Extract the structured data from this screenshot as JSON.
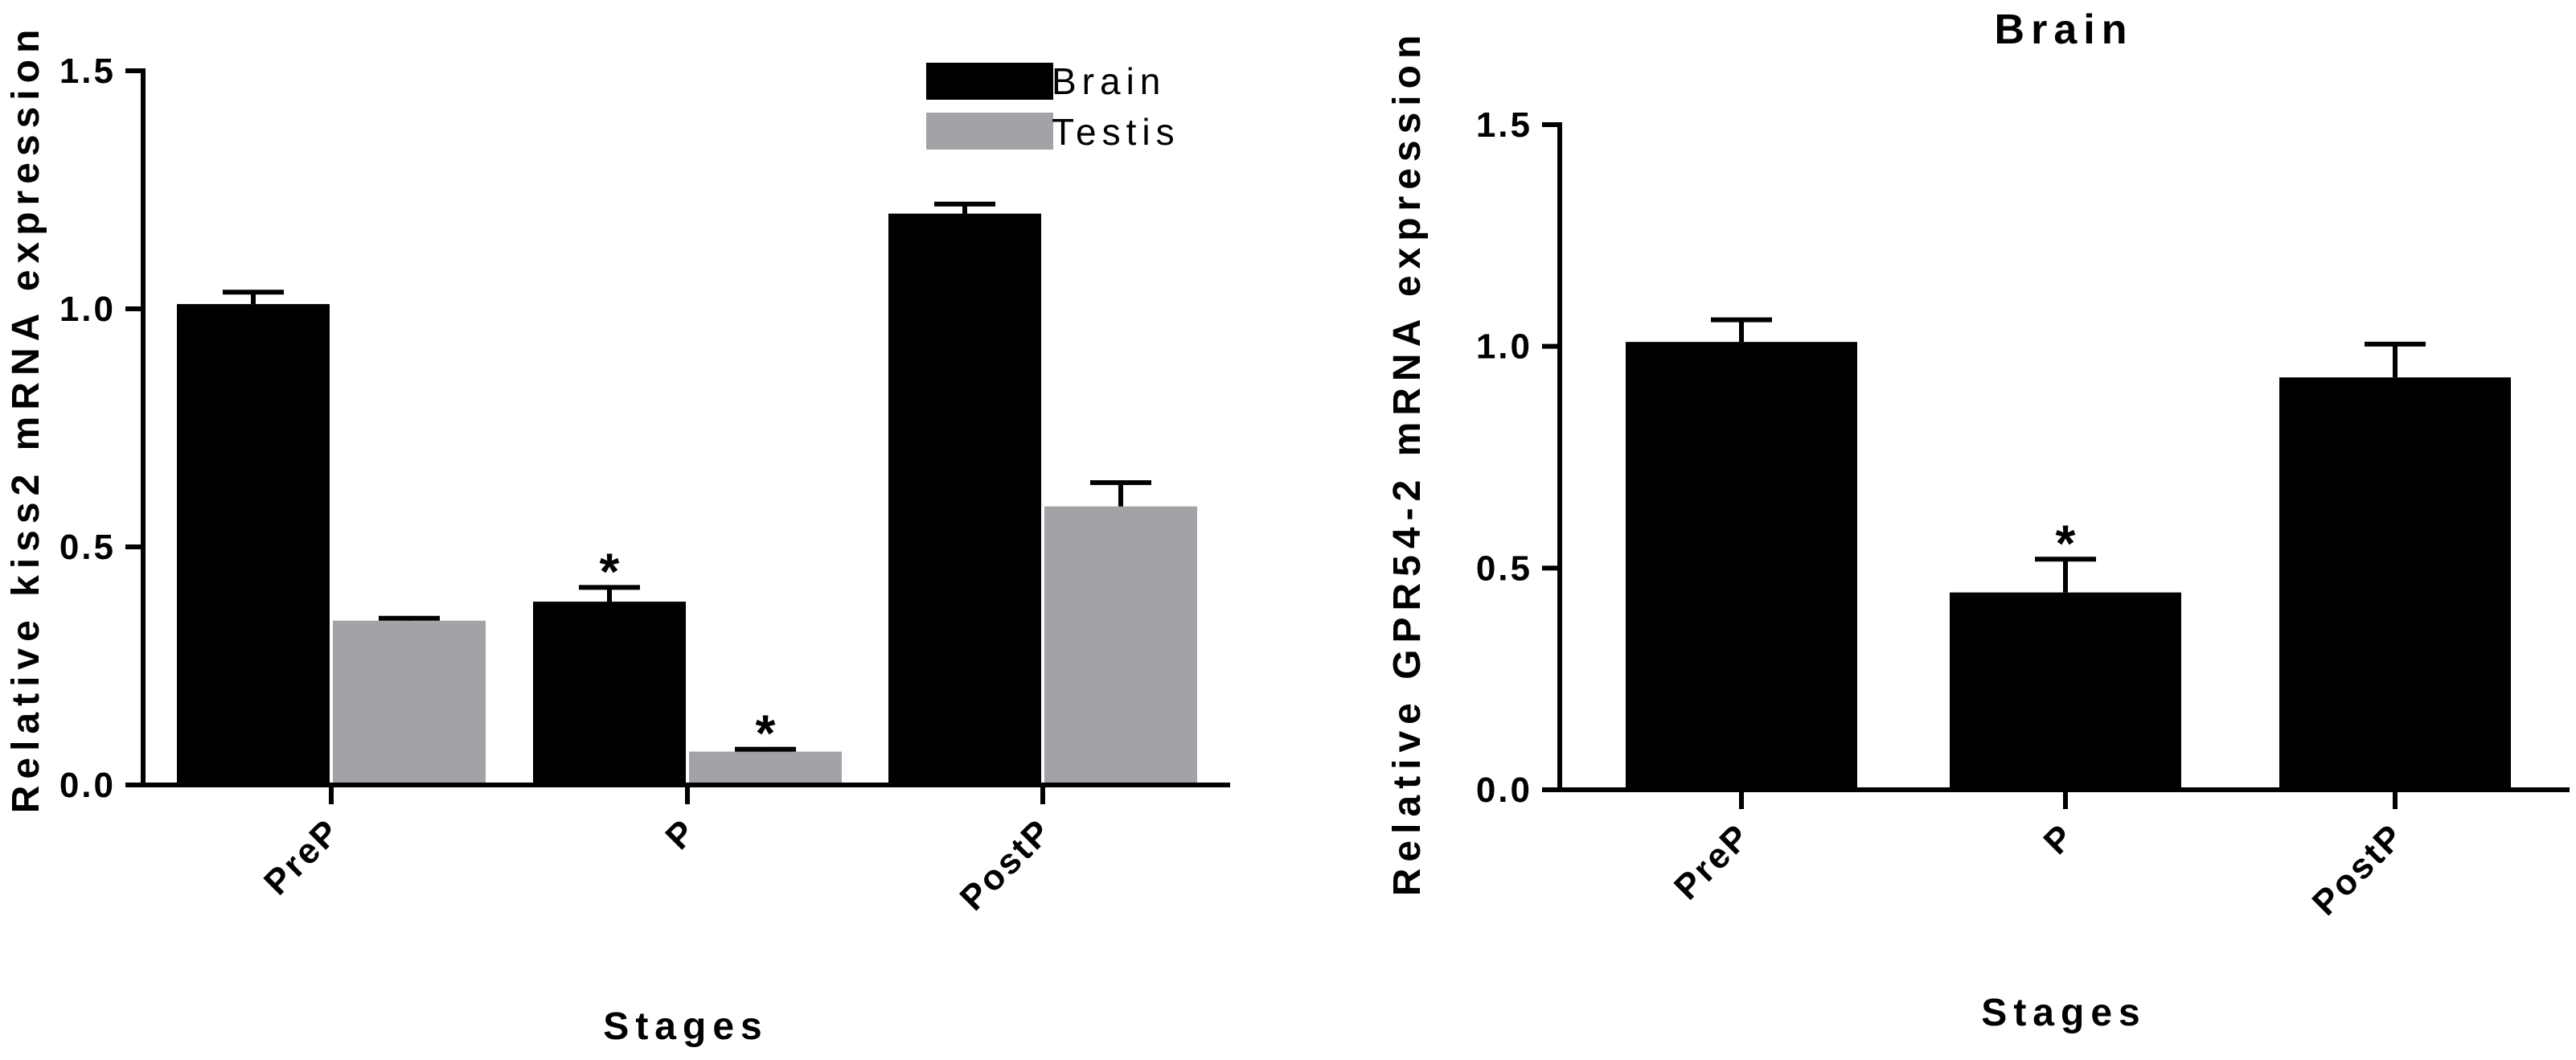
{
  "chart_data": [
    {
      "type": "bar",
      "title": "",
      "xlabel": "Stages",
      "ylabel": "Relative kiss2 mRNA expression",
      "categories": [
        "PreP",
        "P",
        "PostP"
      ],
      "ylim": [
        0,
        1.5
      ],
      "yticks": [
        "0.0",
        "0.5",
        "1.0",
        "1.5"
      ],
      "legend": "top-right",
      "series": [
        {
          "name": "Brain",
          "color": "#000000",
          "values": [
            1.01,
            0.385,
            1.2
          ],
          "errors": [
            0.025,
            0.03,
            0.02
          ],
          "significance": [
            "",
            "*",
            ""
          ]
        },
        {
          "name": "Testis",
          "color": "#a3a3a7",
          "values": [
            0.345,
            0.07,
            0.585
          ],
          "errors": [
            0.005,
            0.005,
            0.05
          ],
          "significance": [
            "",
            "*",
            ""
          ]
        }
      ]
    },
    {
      "type": "bar",
      "title": "Brain",
      "xlabel": "Stages",
      "ylabel": "Relative GPR54-2 mRNA expression",
      "categories": [
        "PreP",
        "P",
        "PostP"
      ],
      "ylim": [
        0,
        1.5
      ],
      "yticks": [
        "0.0",
        "0.5",
        "1.0",
        "1.5"
      ],
      "series": [
        {
          "color": "#000000",
          "values": [
            1.01,
            0.445,
            0.93
          ],
          "errors": [
            0.05,
            0.075,
            0.075
          ],
          "significance": [
            "",
            "*",
            ""
          ]
        }
      ]
    }
  ]
}
